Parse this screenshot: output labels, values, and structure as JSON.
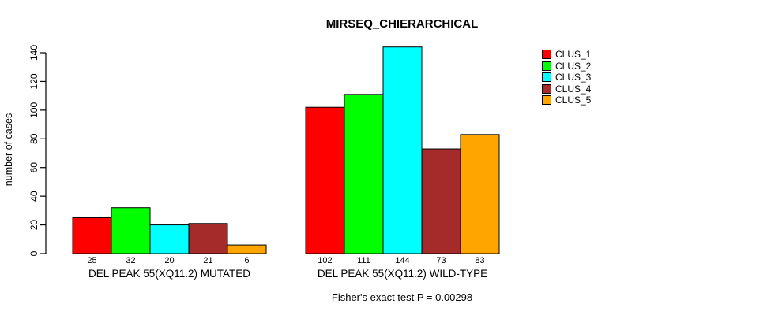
{
  "chart_data": {
    "type": "bar",
    "title": "MIRSEQ_CHIERARCHICAL",
    "ylabel": "number of cases",
    "xlabel": "",
    "annotation": "Fisher's exact test P = 0.00298",
    "categories": [
      "DEL PEAK 55(XQ11.2) MUTATED",
      "DEL PEAK 55(XQ11.2) WILD-TYPE"
    ],
    "series": [
      {
        "name": "CLUS_1",
        "color": "#FF0000",
        "values": [
          25,
          102
        ]
      },
      {
        "name": "CLUS_2",
        "color": "#00FF00",
        "values": [
          32,
          111
        ]
      },
      {
        "name": "CLUS_3",
        "color": "#00FFFF",
        "values": [
          20,
          144
        ]
      },
      {
        "name": "CLUS_4",
        "color": "#A52A2A",
        "values": [
          21,
          73
        ]
      },
      {
        "name": "CLUS_5",
        "color": "#FFA500",
        "values": [
          6,
          83
        ]
      }
    ],
    "yticks": [
      0,
      20,
      40,
      60,
      80,
      100,
      120,
      140
    ],
    "ylim": [
      0,
      145
    ],
    "bar_value_labels_shown": true,
    "grid": false,
    "legend_position": "right",
    "axis_color": "#000000",
    "bar_border_color": "#000000"
  }
}
